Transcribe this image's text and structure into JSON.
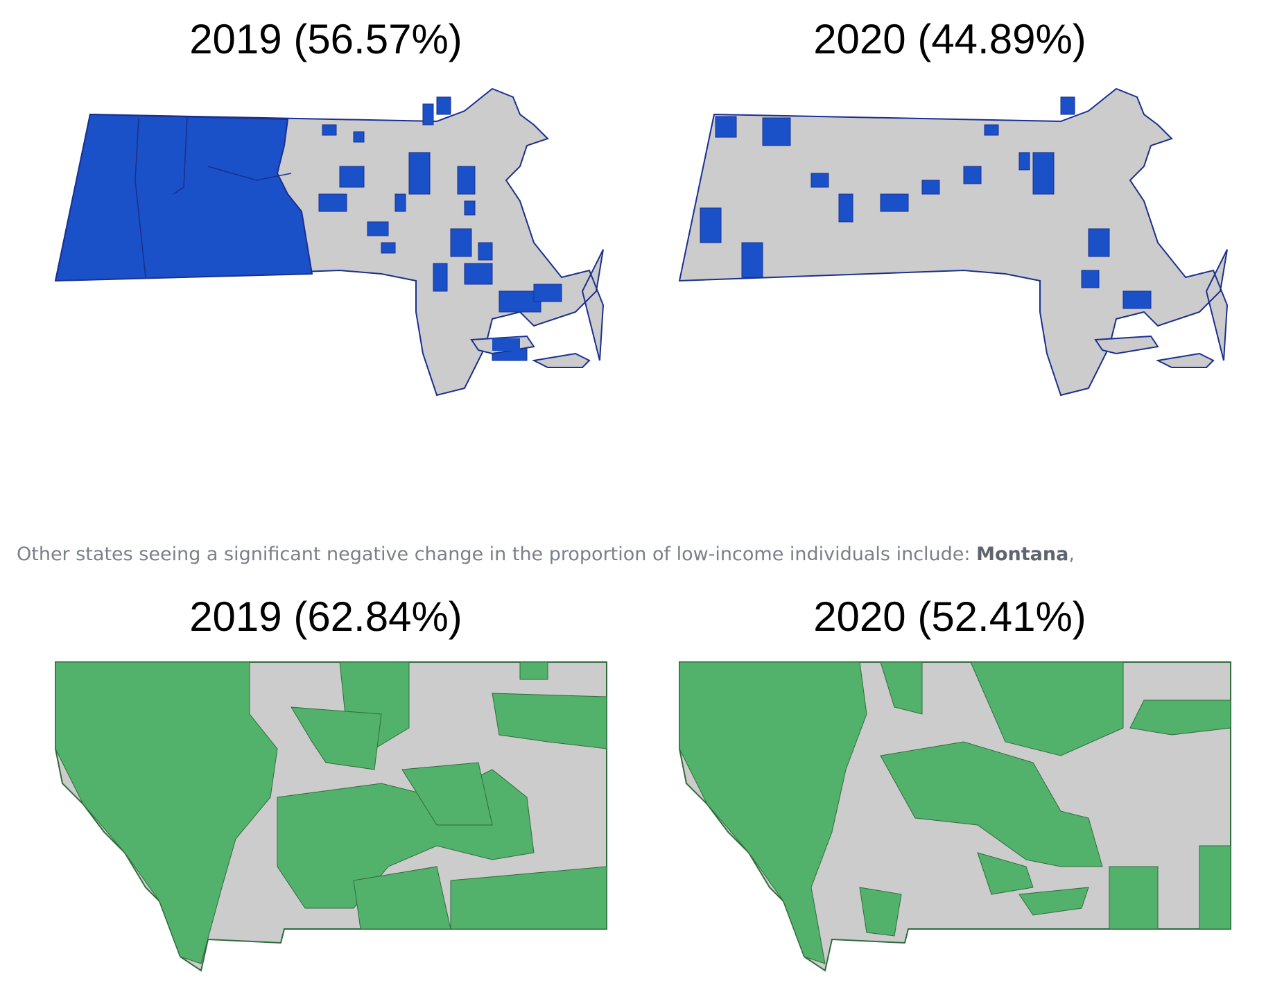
{
  "maps": [
    {
      "title": "2019 (56.57%)",
      "state": "Massachusetts",
      "year": "2019",
      "share_pct": 56.57,
      "fill_color": "#1a50c8",
      "border_color": "#1a2f8f"
    },
    {
      "title": "2020 (44.89%)",
      "state": "Massachusetts",
      "year": "2020",
      "share_pct": 44.89,
      "fill_color": "#1a50c8",
      "border_color": "#1a2f8f"
    },
    {
      "title": "2019 (62.84%)",
      "state": "Montana",
      "year": "2019",
      "share_pct": 62.84,
      "fill_color": "#52b26b",
      "border_color": "#2f6b3c"
    },
    {
      "title": "2020 (52.41%)",
      "state": "Montana",
      "year": "2020",
      "share_pct": 52.41,
      "fill_color": "#52b26b",
      "border_color": "#2f6b3c"
    }
  ],
  "caption": {
    "text": "Other states seeing a significant negative change in the proportion of low-income individuals include: ",
    "bold": "Montana",
    "tail": ","
  },
  "colors": {
    "no_data_fill": "#cccccc",
    "ma_fill": "#1a50c8",
    "mt_fill": "#52b26b"
  }
}
